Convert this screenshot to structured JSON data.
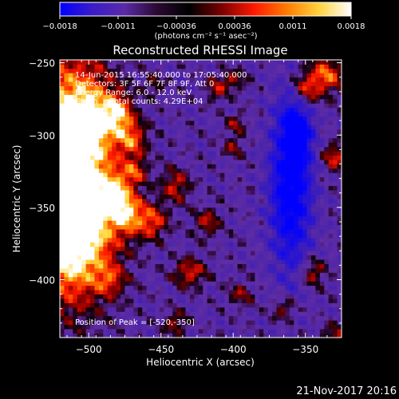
{
  "colorbar": {
    "ticks": [
      "-0.0018",
      "-0.0011",
      "-0.00036",
      "0.00036",
      "0.0011",
      "0.0018"
    ],
    "units": "(photons cm⁻² s⁻¹ asec⁻²)",
    "colors": [
      "#0000ff",
      "#3a1cc8",
      "#5a2aa8",
      "#2a0a32",
      "#000000",
      "#7a0000",
      "#ff1800",
      "#ff7a00",
      "#ffd23c",
      "#ffffff"
    ]
  },
  "chart_data": {
    "type": "heatmap",
    "title": "Reconstructed RHESSI Image",
    "xlabel": "Heliocentric X (arcsec)",
    "ylabel": "Heliocentric Y (arcsec)",
    "xlim": [
      -520,
      -325
    ],
    "ylim": [
      -440,
      -248
    ],
    "xticks": [
      -500,
      -450,
      -400,
      -350
    ],
    "yticks": [
      -250,
      -300,
      -350,
      -400
    ],
    "xtick_labels": [
      "−500",
      "−450",
      "−400",
      "−350"
    ],
    "ytick_labels": [
      "−250",
      "−300",
      "−350",
      "−400"
    ],
    "value_range": [
      -0.0018,
      0.0018
    ],
    "peak_position": [
      -520,
      -350
    ],
    "info_lines": [
      "14-Jun-2015 16:55:40.000 to 17:05:40.000",
      "Detectors: 3F 5F 6F 7F 8F 9F, Att 0",
      "Energy Range: 6.0 - 12.0 keV",
      "Clean     Total counts: 4.29E+04"
    ],
    "peak_label": "Position of Peak = [-520,-350]"
  },
  "footer": {
    "timestamp": "21-Nov-2017 20:16"
  }
}
